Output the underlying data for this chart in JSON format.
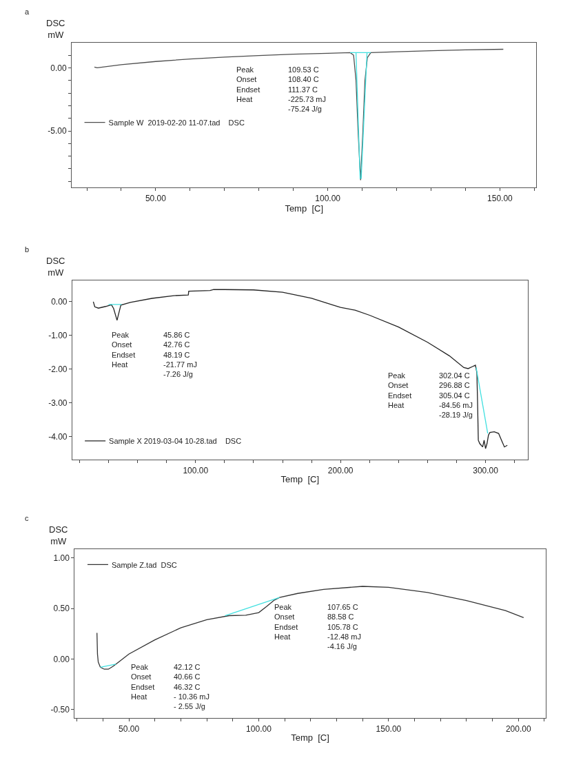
{
  "chart_data": [
    {
      "type": "line",
      "title": "a",
      "xlabel": "Temp  [C]",
      "ylabel": "DSC\nmW",
      "grid": false,
      "legend": "left",
      "marker": "none",
      "xlim": [
        25.6,
        160.6
      ],
      "ylim": [
        -9.5,
        2.0
      ],
      "xticks": [
        {
          "value": 30,
          "label": null
        },
        {
          "value": 40,
          "label": null
        },
        {
          "value": 50,
          "label": "50.00"
        },
        {
          "value": 60,
          "label": null
        },
        {
          "value": 70,
          "label": null
        },
        {
          "value": 80,
          "label": null
        },
        {
          "value": 90,
          "label": null
        },
        {
          "value": 100,
          "label": "100.00"
        },
        {
          "value": 110,
          "label": null
        },
        {
          "value": 120,
          "label": null
        },
        {
          "value": 130,
          "label": null
        },
        {
          "value": 140,
          "label": null
        },
        {
          "value": 150,
          "label": "150.00"
        },
        {
          "value": 160,
          "label": null
        }
      ],
      "yticks": [
        {
          "value": 1,
          "label": null
        },
        {
          "value": 0,
          "label": "0.00"
        },
        {
          "value": -1,
          "label": null
        },
        {
          "value": -2,
          "label": null
        },
        {
          "value": -3,
          "label": null
        },
        {
          "value": -4,
          "label": null
        },
        {
          "value": -5,
          "label": "-5.00"
        },
        {
          "value": -6,
          "label": null
        },
        {
          "value": -7,
          "label": null
        },
        {
          "value": -8,
          "label": null
        },
        {
          "value": -9,
          "label": null
        }
      ],
      "series": [
        {
          "name": "Sample W  2019-02-20 11-07.tad    DSC",
          "color": "#4d4d4d",
          "x": [
            32.2,
            33,
            40,
            50,
            60,
            70,
            80,
            90,
            100,
            106.5,
            107.5,
            108.2,
            108.8,
            109.53,
            110.2,
            110.8,
            111.5,
            112.5,
            120,
            130,
            140,
            151
          ],
          "values": [
            0.05,
            0.0,
            0.25,
            0.5,
            0.7,
            0.85,
            0.97,
            1.08,
            1.15,
            1.2,
            1.0,
            -1,
            -5,
            -8.9,
            -5,
            -1,
            0.8,
            1.2,
            1.27,
            1.35,
            1.42,
            1.47
          ]
        },
        {
          "color": "#40e0e0",
          "x": [
            106.5,
            112.5
          ],
          "values": [
            1.2,
            1.2
          ]
        },
        {
          "color": "#40e0e0",
          "x": [
            108.2,
            109.4
          ],
          "values": [
            1.2,
            -8.8
          ]
        },
        {
          "color": "#40e0e0",
          "x": [
            111.4,
            109.7
          ],
          "values": [
            1.2,
            -8.8
          ]
        }
      ],
      "annotations": [
        "Peak\nOnset\nEndset\nHeat",
        "109.53 C\n108.40 C\n111.37 C\n-225.73 mJ\n-75.24 J/g"
      ]
    },
    {
      "type": "line",
      "title": "b",
      "xlabel": "Temp  [C]",
      "ylabel": "DSC\nmW",
      "grid": false,
      "legend": "bottom left",
      "marker": "none",
      "xlim": [
        15,
        329
      ],
      "ylim": [
        -4.68,
        0.63
      ],
      "xticks": [
        {
          "value": 20,
          "label": null
        },
        {
          "value": 40,
          "label": null
        },
        {
          "value": 60,
          "label": null
        },
        {
          "value": 80,
          "label": null
        },
        {
          "value": 100,
          "label": "100.00"
        },
        {
          "value": 120,
          "label": null
        },
        {
          "value": 140,
          "label": null
        },
        {
          "value": 160,
          "label": null
        },
        {
          "value": 180,
          "label": null
        },
        {
          "value": 200,
          "label": "200.00"
        },
        {
          "value": 220,
          "label": null
        },
        {
          "value": 240,
          "label": null
        },
        {
          "value": 260,
          "label": null
        },
        {
          "value": 280,
          "label": null
        },
        {
          "value": 300,
          "label": "300.00"
        },
        {
          "value": 320,
          "label": null
        }
      ],
      "yticks": [
        {
          "value": 0,
          "label": "0.00"
        },
        {
          "value": -1,
          "label": "-1.00"
        },
        {
          "value": -2,
          "label": "-2.00"
        },
        {
          "value": -3,
          "label": "-3.00"
        },
        {
          "value": -4,
          "label": "-4.00"
        }
      ],
      "series": [
        {
          "name": "Sample X 2019-03-04 10-28.tad    DSC",
          "color": "#222222",
          "x": [
            29.5,
            30.5,
            33,
            38,
            42,
            43.5,
            45.86,
            47,
            48.5,
            55,
            70,
            85,
            95,
            95.3,
            110,
            112.5,
            120,
            140,
            160,
            180,
            195,
            200,
            210,
            220,
            240,
            260,
            275,
            285,
            288,
            291,
            293,
            294,
            294.5,
            295,
            296,
            297,
            298,
            299,
            300,
            301,
            302,
            303,
            306,
            309,
            311,
            313,
            315
          ],
          "values": [
            0.0,
            -0.15,
            -0.19,
            -0.14,
            -0.09,
            -0.2,
            -0.55,
            -0.35,
            -0.1,
            -0.02,
            0.1,
            0.18,
            0.2,
            0.31,
            0.33,
            0.36,
            0.36,
            0.35,
            0.28,
            0.1,
            -0.1,
            -0.17,
            -0.25,
            -0.4,
            -0.75,
            -1.2,
            -1.6,
            -1.95,
            -1.98,
            -1.92,
            -1.88,
            -2.1,
            -3.0,
            -4.1,
            -4.2,
            -4.25,
            -4.3,
            -4.1,
            -4.35,
            -4.2,
            -3.95,
            -3.87,
            -3.85,
            -3.9,
            -4.1,
            -4.3,
            -4.25
          ]
        },
        {
          "color": "#40e0e0",
          "x": [
            40,
            49
          ],
          "values": [
            -0.08,
            -0.08
          ]
        },
        {
          "color": "#40e0e0",
          "x": [
            293.5,
            301.5
          ],
          "values": [
            -1.95,
            -3.9
          ]
        }
      ],
      "annotations": [
        "Peak\nOnset\nEndset\nHeat",
        "45.86 C\n42.76 C\n48.19 C\n-21.77 mJ\n-7.26 J/g",
        "Peak\nOnset\nEndset\nHeat",
        "302.04 C\n296.88 C\n305.04 C\n-84.56 mJ\n-28.19 J/g"
      ]
    },
    {
      "type": "line",
      "title": "c",
      "xlabel": "Temp  [C]",
      "ylabel": "DSC\nmW",
      "grid": false,
      "legend": "top left",
      "marker": "none",
      "xlim": [
        29.1,
        210.5
      ],
      "ylim": [
        -0.585,
        1.085
      ],
      "xticks": [
        {
          "value": 30,
          "label": null
        },
        {
          "value": 40,
          "label": null
        },
        {
          "value": 50,
          "label": "50.00"
        },
        {
          "value": 60,
          "label": null
        },
        {
          "value": 70,
          "label": null
        },
        {
          "value": 80,
          "label": null
        },
        {
          "value": 90,
          "label": null
        },
        {
          "value": 100,
          "label": "100.00"
        },
        {
          "value": 110,
          "label": null
        },
        {
          "value": 120,
          "label": null
        },
        {
          "value": 130,
          "label": null
        },
        {
          "value": 140,
          "label": null
        },
        {
          "value": 150,
          "label": "150.00"
        },
        {
          "value": 160,
          "label": null
        },
        {
          "value": 170,
          "label": null
        },
        {
          "value": 180,
          "label": null
        },
        {
          "value": 190,
          "label": null
        },
        {
          "value": 200,
          "label": "200.00"
        },
        {
          "value": 210,
          "label": null
        }
      ],
      "yticks": [
        {
          "value": 1,
          "label": "1.00"
        },
        {
          "value": 0.5,
          "label": "0.50"
        },
        {
          "value": 0,
          "label": "0.00"
        },
        {
          "value": -0.5,
          "label": "-0.50"
        }
      ],
      "series": [
        {
          "name": "Sample Z.tad  DSC",
          "color": "#333333",
          "x": [
            37.7,
            37.9,
            38.2,
            39,
            40.5,
            42.12,
            44,
            46,
            50,
            60,
            70,
            80,
            88.6,
            95,
            100,
            103,
            105.8,
            108,
            115,
            125,
            140,
            150,
            165,
            180,
            195,
            202
          ],
          "values": [
            0.26,
            0.05,
            -0.03,
            -0.08,
            -0.1,
            -0.1,
            -0.07,
            -0.03,
            0.05,
            0.19,
            0.31,
            0.39,
            0.43,
            0.435,
            0.46,
            0.52,
            0.58,
            0.61,
            0.65,
            0.69,
            0.72,
            0.71,
            0.66,
            0.58,
            0.48,
            0.41
          ]
        },
        {
          "color": "#40e0e0",
          "x": [
            39,
            45
          ],
          "values": [
            -0.08,
            -0.05
          ]
        },
        {
          "color": "#40e0e0",
          "x": [
            87,
            108
          ],
          "values": [
            0.43,
            0.61
          ]
        }
      ],
      "annotations": [
        "Peak\nOnset\nEndset\nHeat",
        "42.12 C\n40.66 C\n46.32 C\n- 10.36 mJ\n- 2.55 J/g",
        "Peak\nOnset\nEndset\nHeat",
        "107.65 C\n88.58 C\n105.78 C\n-12.48 mJ\n-4.16 J/g"
      ]
    }
  ]
}
